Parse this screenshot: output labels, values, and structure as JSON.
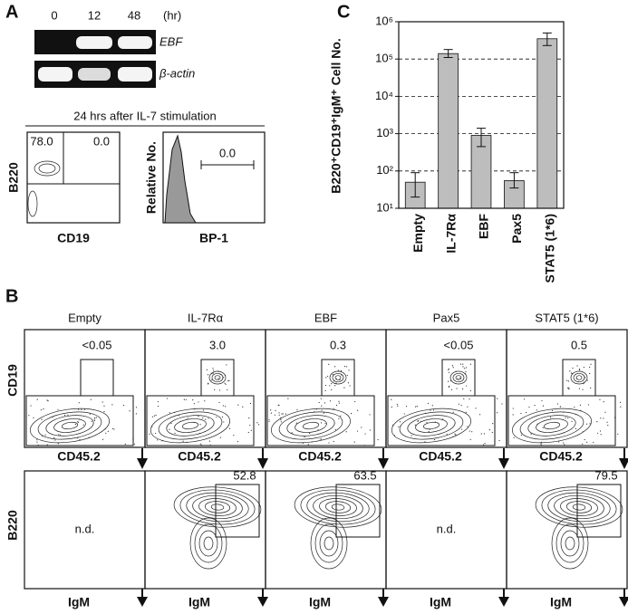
{
  "panel_a": {
    "label": "A",
    "gel": {
      "times": [
        "0",
        "12",
        "48"
      ],
      "unit": "(hr)",
      "genes": [
        "EBF",
        "β-actin"
      ]
    },
    "caption": "24 hrs after IL-7 stimulation",
    "flow": {
      "upper_left": "78.0",
      "upper_right": "0.0",
      "y_label": "B220",
      "x_label": "CD19"
    },
    "histogram": {
      "y_label": "Relative No.",
      "x_label": "BP-1",
      "gate": "0.0"
    }
  },
  "panel_b": {
    "label": "B",
    "y_label_top": "CD19",
    "y_label_bottom": "B220",
    "columns": [
      {
        "title": "Empty",
        "gate": "<0.05",
        "x_label": "CD45.2",
        "note": "n.d.",
        "lower_x_label": "IgM"
      },
      {
        "title": "IL-7Rα",
        "gate": "3.0",
        "x_label": "CD45.2",
        "igm_gate": "52.8",
        "lower_x_label": "IgM"
      },
      {
        "title": "EBF",
        "gate": "0.3",
        "x_label": "CD45.2",
        "igm_gate": "63.5",
        "lower_x_label": "IgM"
      },
      {
        "title": "Pax5",
        "gate": "<0.05",
        "x_label": "CD45.2",
        "note": "n.d.",
        "lower_x_label": "IgM"
      },
      {
        "title": "STAT5 (1*6)",
        "gate": "0.5",
        "x_label": "CD45.2",
        "igm_gate": "79.5",
        "lower_x_label": "IgM"
      }
    ]
  },
  "chart_data": {
    "type": "bar",
    "panel_label": "C",
    "y_label": "B220⁺CD19⁺IgM⁺ Cell No.",
    "categories": [
      "Empty",
      "IL-7Rα",
      "EBF",
      "Pax5",
      "STAT5 (1*6)"
    ],
    "values": [
      50,
      140000,
      900,
      55,
      350000
    ],
    "error_low": [
      20,
      110000,
      450,
      35,
      230000
    ],
    "error_high": [
      90,
      180000,
      1400,
      90,
      500000
    ],
    "color": "#bdbdbd",
    "log_scale": true,
    "grid": true,
    "ylim": [
      10,
      1000000
    ],
    "yticks": [
      {
        "value": 10,
        "label": "10¹"
      },
      {
        "value": 100,
        "label": "10²"
      },
      {
        "value": 1000,
        "label": "10³"
      },
      {
        "value": 10000,
        "label": "10⁴"
      },
      {
        "value": 100000,
        "label": "10⁵"
      },
      {
        "value": 1000000,
        "label": "10⁶"
      }
    ]
  }
}
